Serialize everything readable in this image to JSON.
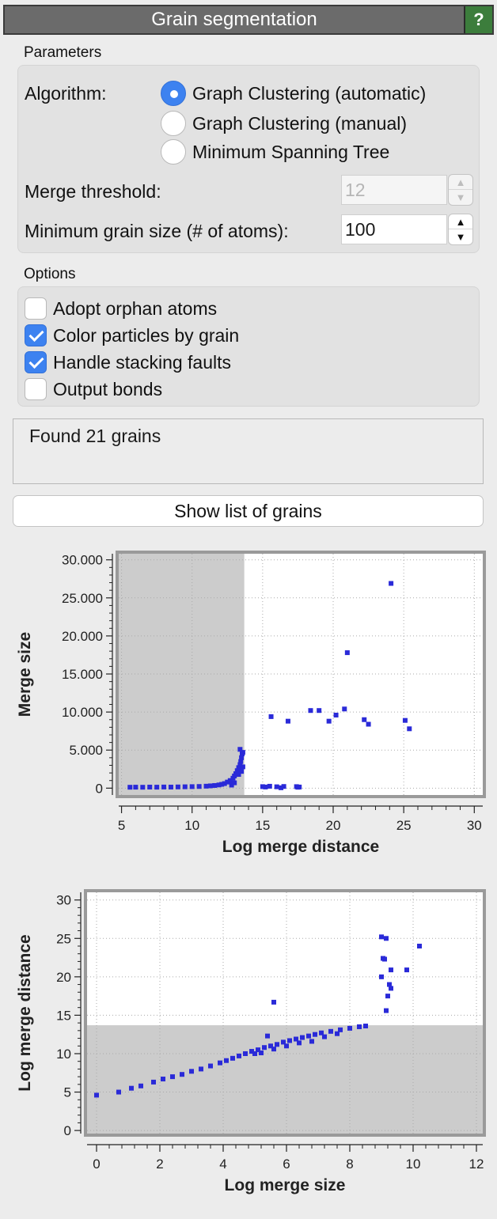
{
  "window": {
    "title": "Grain segmentation",
    "help_label": "?"
  },
  "parameters": {
    "section_label": "Parameters",
    "algorithm_label": "Algorithm:",
    "algorithms": [
      {
        "label": "Graph Clustering (automatic)",
        "selected": true
      },
      {
        "label": "Graph Clustering (manual)",
        "selected": false
      },
      {
        "label": "Minimum Spanning Tree",
        "selected": false
      }
    ],
    "merge_threshold_label": "Merge threshold:",
    "merge_threshold_value": "12",
    "min_grain_label": "Minimum grain size (# of atoms):",
    "min_grain_value": "100"
  },
  "options": {
    "section_label": "Options",
    "items": [
      {
        "label": "Adopt orphan atoms",
        "checked": false
      },
      {
        "label": "Color particles by grain",
        "checked": true
      },
      {
        "label": "Handle stacking faults",
        "checked": true
      },
      {
        "label": "Output bonds",
        "checked": false
      }
    ]
  },
  "status": {
    "text": "Found 21 grains"
  },
  "show_grains_button": "Show list of grains",
  "colors": {
    "accent": "#3d82f0",
    "points": "#2a2ad8",
    "shade": "#cccccc"
  },
  "chart_data": [
    {
      "type": "scatter",
      "xlabel": "Log merge distance",
      "ylabel": "Merge size",
      "xlim": [
        4.8,
        30.6
      ],
      "ylim": [
        -900,
        30800
      ],
      "x_ticks": [
        5,
        10,
        15,
        20,
        25,
        30
      ],
      "x_tick_labels": [
        "5",
        "10",
        "15",
        "20",
        "25",
        "30"
      ],
      "y_ticks": [
        0,
        5000,
        10000,
        15000,
        20000,
        25000,
        30000
      ],
      "y_tick_labels": [
        "0",
        "5.000",
        "10.000",
        "15.000",
        "20.000",
        "25.000",
        "30.000"
      ],
      "shaded_region": {
        "axis": "x",
        "from": 4.8,
        "to": 13.7
      },
      "grid": true,
      "points": [
        [
          5.6,
          120
        ],
        [
          6.0,
          130
        ],
        [
          6.5,
          120
        ],
        [
          7.0,
          140
        ],
        [
          7.5,
          130
        ],
        [
          8.0,
          150
        ],
        [
          8.5,
          140
        ],
        [
          9.0,
          160
        ],
        [
          9.5,
          180
        ],
        [
          10.0,
          200
        ],
        [
          10.5,
          220
        ],
        [
          11.0,
          260
        ],
        [
          11.3,
          300
        ],
        [
          11.6,
          350
        ],
        [
          11.9,
          420
        ],
        [
          12.1,
          500
        ],
        [
          12.3,
          600
        ],
        [
          12.5,
          800
        ],
        [
          12.7,
          1000
        ],
        [
          12.9,
          1300
        ],
        [
          13.0,
          1600
        ],
        [
          13.1,
          1900
        ],
        [
          13.2,
          2300
        ],
        [
          13.3,
          2700
        ],
        [
          13.4,
          3100
        ],
        [
          13.45,
          3500
        ],
        [
          13.5,
          4000
        ],
        [
          13.55,
          4500
        ],
        [
          13.4,
          5100
        ],
        [
          13.6,
          4700
        ],
        [
          13.6,
          2800
        ],
        [
          13.5,
          2200
        ],
        [
          13.3,
          1800
        ],
        [
          12.8,
          400
        ],
        [
          13.0,
          700
        ],
        [
          15.0,
          200
        ],
        [
          15.5,
          250
        ],
        [
          16.0,
          180
        ],
        [
          16.5,
          220
        ],
        [
          15.2,
          150
        ],
        [
          17.4,
          200
        ],
        [
          17.6,
          150
        ],
        [
          17.5,
          120
        ],
        [
          16.3,
          50
        ],
        [
          15.6,
          9400
        ],
        [
          16.8,
          8800
        ],
        [
          18.4,
          10200
        ],
        [
          19.0,
          10200
        ],
        [
          19.7,
          8800
        ],
        [
          20.2,
          9600
        ],
        [
          20.8,
          10400
        ],
        [
          21.0,
          17800
        ],
        [
          22.2,
          9000
        ],
        [
          22.5,
          8400
        ],
        [
          24.1,
          26900
        ],
        [
          25.1,
          8900
        ],
        [
          25.4,
          7800
        ]
      ]
    },
    {
      "type": "scatter",
      "xlabel": "Log merge size",
      "ylabel": "Log merge distance",
      "xlim": [
        -0.3,
        12.2
      ],
      "ylim": [
        -0.4,
        31.0
      ],
      "x_ticks": [
        0,
        2,
        4,
        6,
        8,
        10,
        12
      ],
      "x_tick_labels": [
        "0",
        "2",
        "4",
        "6",
        "8",
        "10",
        "12"
      ],
      "y_ticks": [
        0,
        5,
        10,
        15,
        20,
        25,
        30
      ],
      "y_tick_labels": [
        "0",
        "5",
        "10",
        "15",
        "20",
        "25",
        "30"
      ],
      "shaded_region": {
        "axis": "y",
        "from": -0.4,
        "to": 13.7
      },
      "grid": true,
      "points": [
        [
          0.0,
          4.6
        ],
        [
          0.7,
          5.0
        ],
        [
          1.1,
          5.5
        ],
        [
          1.4,
          5.8
        ],
        [
          1.8,
          6.3
        ],
        [
          2.1,
          6.7
        ],
        [
          2.4,
          7.0
        ],
        [
          2.7,
          7.3
        ],
        [
          3.0,
          7.7
        ],
        [
          3.3,
          8.0
        ],
        [
          3.6,
          8.4
        ],
        [
          3.9,
          8.8
        ],
        [
          4.1,
          9.1
        ],
        [
          4.3,
          9.4
        ],
        [
          4.5,
          9.7
        ],
        [
          4.7,
          10.0
        ],
        [
          4.9,
          10.3
        ],
        [
          5.1,
          10.5
        ],
        [
          5.3,
          10.8
        ],
        [
          5.5,
          11.0
        ],
        [
          5.7,
          11.2
        ],
        [
          5.9,
          11.5
        ],
        [
          6.1,
          11.7
        ],
        [
          6.3,
          11.9
        ],
        [
          6.5,
          12.1
        ],
        [
          6.7,
          12.3
        ],
        [
          6.9,
          12.5
        ],
        [
          7.1,
          12.7
        ],
        [
          7.4,
          12.9
        ],
        [
          7.7,
          13.1
        ],
        [
          8.0,
          13.3
        ],
        [
          8.3,
          13.5
        ],
        [
          8.5,
          13.6
        ],
        [
          5.4,
          12.3
        ],
        [
          5.2,
          10.1
        ],
        [
          5.0,
          10.0
        ],
        [
          5.6,
          10.6
        ],
        [
          6.0,
          11.0
        ],
        [
          6.4,
          11.4
        ],
        [
          6.8,
          11.6
        ],
        [
          7.2,
          12.2
        ],
        [
          7.6,
          12.6
        ],
        [
          5.6,
          16.7
        ],
        [
          9.0,
          25.2
        ],
        [
          9.15,
          25.0
        ],
        [
          9.1,
          22.3
        ],
        [
          9.3,
          20.9
        ],
        [
          9.25,
          19.0
        ],
        [
          9.3,
          18.5
        ],
        [
          9.0,
          20.0
        ],
        [
          9.2,
          17.5
        ],
        [
          9.15,
          15.6
        ],
        [
          9.8,
          20.9
        ],
        [
          10.2,
          24.0
        ],
        [
          9.05,
          22.4
        ]
      ]
    }
  ]
}
